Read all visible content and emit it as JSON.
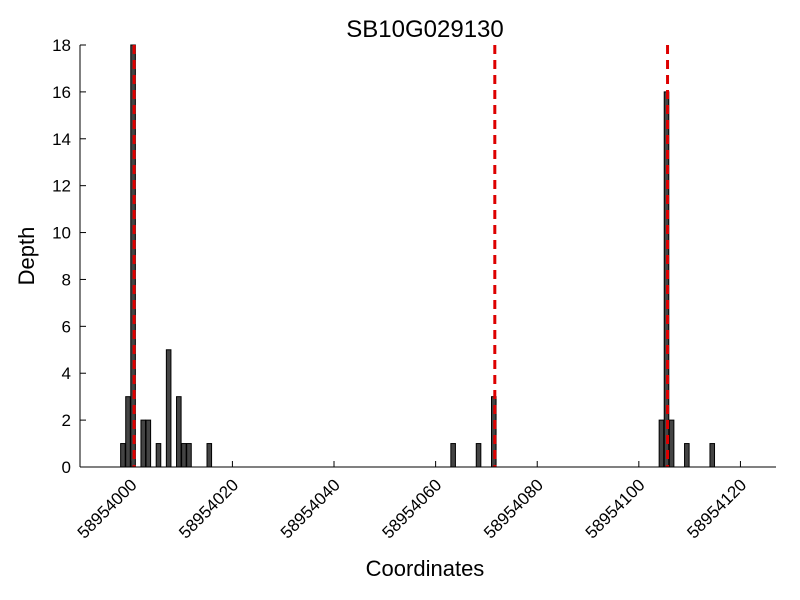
{
  "chart_data": {
    "type": "bar",
    "title": "SB10G029130",
    "xlabel": "Coordinates",
    "ylabel": "Depth",
    "xlim": [
      58953990,
      58954127
    ],
    "ylim": [
      0,
      18
    ],
    "xticks": [
      58954000,
      58954020,
      58954040,
      58954060,
      58954080,
      58954100,
      58954120
    ],
    "yticks": [
      0,
      2,
      4,
      6,
      8,
      10,
      12,
      14,
      16,
      18
    ],
    "bar_color": "#444444",
    "marker_color": "#dd0000",
    "grid": false,
    "legend": "none",
    "bars": [
      {
        "x": 58953998,
        "y": 1
      },
      {
        "x": 58953999,
        "y": 3
      },
      {
        "x": 58954000,
        "y": 18
      },
      {
        "x": 58954002,
        "y": 2
      },
      {
        "x": 58954003,
        "y": 2
      },
      {
        "x": 58954005,
        "y": 1
      },
      {
        "x": 58954007,
        "y": 5
      },
      {
        "x": 58954009,
        "y": 3
      },
      {
        "x": 58954010,
        "y": 1
      },
      {
        "x": 58954011,
        "y": 1
      },
      {
        "x": 58954015,
        "y": 1
      },
      {
        "x": 58954063,
        "y": 1
      },
      {
        "x": 58954068,
        "y": 1
      },
      {
        "x": 58954071,
        "y": 3
      },
      {
        "x": 58954104,
        "y": 2
      },
      {
        "x": 58954105,
        "y": 16
      },
      {
        "x": 58954106,
        "y": 2
      },
      {
        "x": 58954109,
        "y": 1
      },
      {
        "x": 58954114,
        "y": 1
      }
    ],
    "markers": [
      58954000.2,
      58954071.2,
      58954105.2
    ]
  }
}
